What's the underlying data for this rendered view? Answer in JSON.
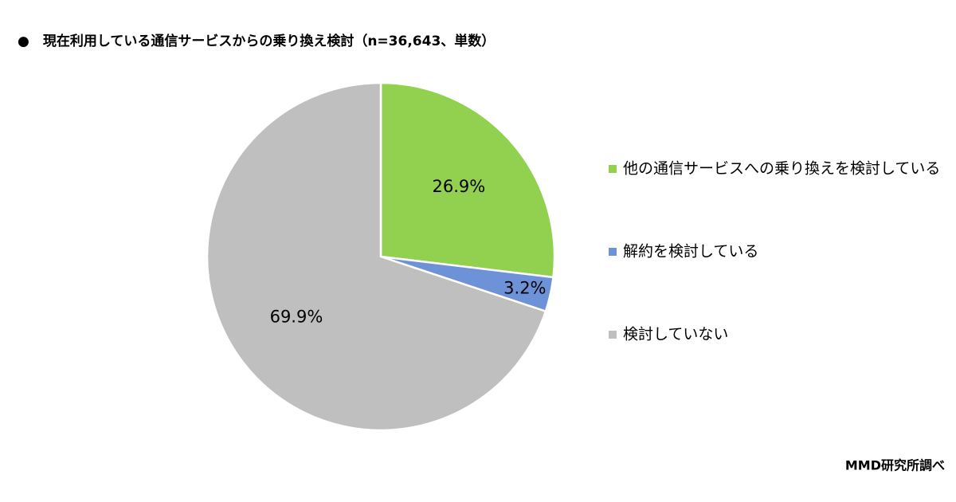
{
  "chart_data": {
    "type": "pie",
    "title": "●　現在利用している通信サービスからの乗り換え検討（n=36,643、単数）",
    "categories": [
      "他の通信サービスへの乗り換えを検討している",
      "解約を検討している",
      "検討していない"
    ],
    "values": [
      26.9,
      3.2,
      69.9
    ],
    "value_labels": [
      "26.9%",
      "3.2%",
      "69.9%"
    ],
    "colors": [
      "#92d050",
      "#6e92d8",
      "#bfbfbf"
    ],
    "legend": "right",
    "source": "MMD研究所調べ"
  }
}
